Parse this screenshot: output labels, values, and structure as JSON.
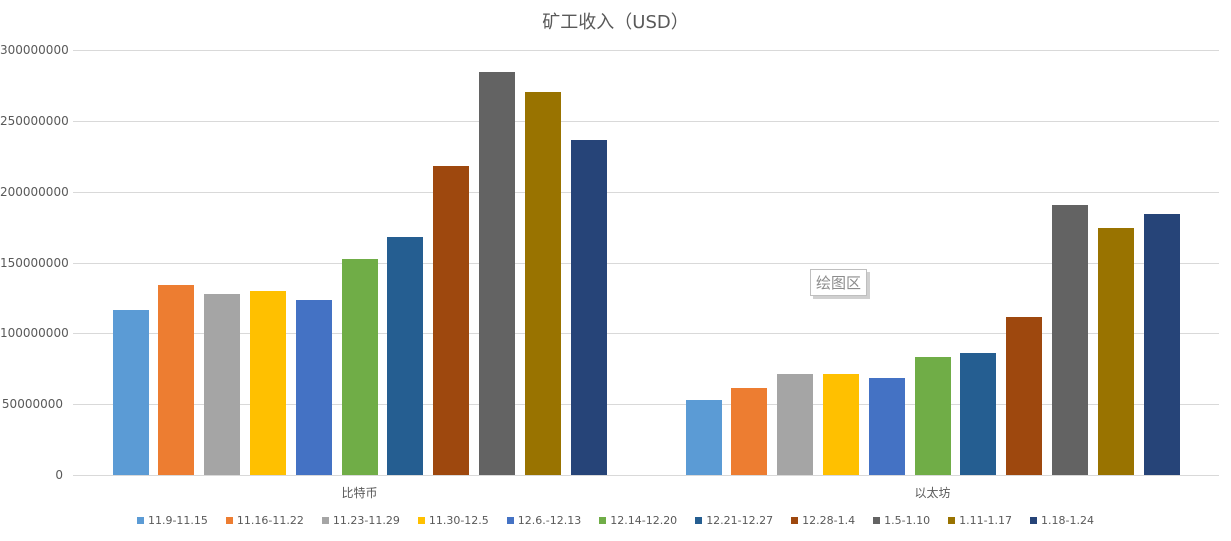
{
  "chart_data": {
    "type": "bar",
    "title": "矿工收入（USD）",
    "xlabel": "",
    "ylabel": "",
    "ylim": [
      0,
      300000000
    ],
    "yticks": [
      0,
      50000000,
      100000000,
      150000000,
      200000000,
      250000000,
      300000000
    ],
    "ytick_labels": [
      "0",
      "50000000",
      "100000000",
      "150000000",
      "200000000",
      "250000000",
      "300000000"
    ],
    "grid": true,
    "legend_position": "bottom",
    "categories": [
      "比特币",
      "以太坊"
    ],
    "series": [
      {
        "name": "11.9-11.15",
        "color": "#5B9BD5",
        "values": [
          116500000,
          52900000
        ]
      },
      {
        "name": "11.16-11.22",
        "color": "#ED7D31",
        "values": [
          134100000,
          61400000
        ]
      },
      {
        "name": "11.23-11.29",
        "color": "#A5A5A5",
        "values": [
          127800000,
          71300000
        ]
      },
      {
        "name": "11.30-12.5",
        "color": "#FFC000",
        "values": [
          129900000,
          71300000
        ]
      },
      {
        "name": "12.6.-12.13",
        "color": "#4472C4",
        "values": [
          123500000,
          68500000
        ]
      },
      {
        "name": "12.14-12.20",
        "color": "#70AD47",
        "values": [
          152500000,
          83300000
        ]
      },
      {
        "name": "12.21-12.27",
        "color": "#255E91",
        "values": [
          168000000,
          86100000
        ]
      },
      {
        "name": "12.28-1.4",
        "color": "#9E480E",
        "values": [
          218100000,
          111500000
        ]
      },
      {
        "name": "1.5-1.10",
        "color": "#636363",
        "values": [
          284500000,
          190600000
        ]
      },
      {
        "name": "1.11-1.17",
        "color": "#997300",
        "values": [
          270400000,
          174400000
        ]
      },
      {
        "name": "1.18-1.24",
        "color": "#264478",
        "values": [
          236500000,
          184200000
        ]
      }
    ]
  },
  "tooltip": {
    "label": "绘图区"
  }
}
